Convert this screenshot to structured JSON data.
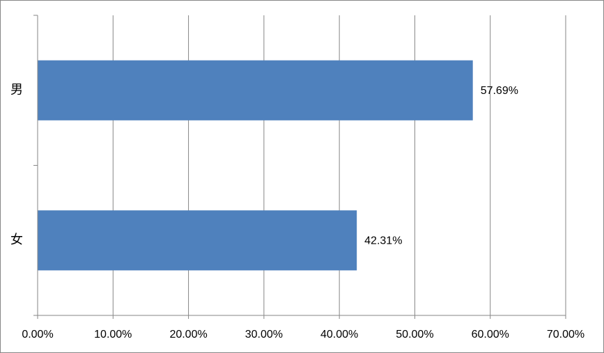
{
  "chart_data": {
    "type": "hbar",
    "categories": [
      "男",
      "女"
    ],
    "values": [
      57.69,
      42.31
    ],
    "value_labels": [
      "57.69%",
      "42.31%"
    ],
    "color": "#4f81bd",
    "xlim": [
      0,
      70
    ],
    "xticks": [
      {
        "value": 0,
        "label": "0.00%"
      },
      {
        "value": 10,
        "label": "10.00%"
      },
      {
        "value": 20,
        "label": "20.00%"
      },
      {
        "value": 30,
        "label": "30.00%"
      },
      {
        "value": 40,
        "label": "40.00%"
      },
      {
        "value": 50,
        "label": "50.00%"
      },
      {
        "value": 60,
        "label": "60.00%"
      },
      {
        "value": 70,
        "label": "70.00%"
      }
    ],
    "grid": true
  }
}
